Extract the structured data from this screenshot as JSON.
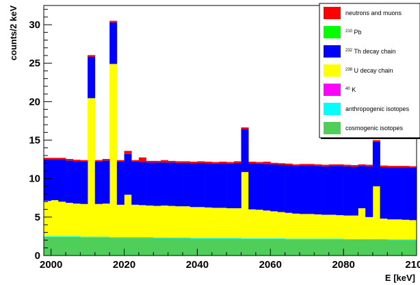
{
  "chart_data": {
    "type": "bar",
    "stacked": true,
    "histogram": true,
    "xlabel": "E [keV]",
    "ylabel": "counts/2 keV",
    "xlim": [
      1998,
      2100
    ],
    "ylim": [
      0,
      32.5
    ],
    "bin_width": 2,
    "x_ticks": [
      2000,
      2020,
      2040,
      2060,
      2080,
      2100
    ],
    "x_tick_labels": [
      "2000",
      "2020",
      "2040",
      "2060",
      "2080",
      "2100"
    ],
    "y_ticks": [
      0,
      5,
      10,
      15,
      20,
      25,
      30
    ],
    "y_tick_labels": [
      "0",
      "5",
      "10",
      "15",
      "20",
      "25",
      "30"
    ],
    "legend_position": "top-right",
    "legend": [
      {
        "key": "neutrons",
        "pre": "",
        "sup": "",
        "post": "neutrons and muons",
        "color": "#ff0000"
      },
      {
        "key": "pb210",
        "pre": "",
        "sup": "210",
        "post": " Pb",
        "color": "#00ff00"
      },
      {
        "key": "th232",
        "pre": "",
        "sup": "232",
        "post": " Th decay chain",
        "color": "#0000ff"
      },
      {
        "key": "u238",
        "pre": "",
        "sup": "238",
        "post": " U decay chain",
        "color": "#ffff00"
      },
      {
        "key": "k40",
        "pre": "",
        "sup": "40",
        "post": " K",
        "color": "#ff00ff"
      },
      {
        "key": "anthro",
        "pre": "",
        "sup": "",
        "post": "anthropogenic isotopes",
        "color": "#00ffff"
      },
      {
        "key": "cosmo",
        "pre": "",
        "sup": "",
        "post": "cosmogenic isotopes",
        "color": "#4fce5a"
      }
    ],
    "bins": [
      1998,
      2000,
      2002,
      2004,
      2006,
      2008,
      2010,
      2012,
      2014,
      2016,
      2018,
      2020,
      2022,
      2024,
      2026,
      2028,
      2030,
      2032,
      2034,
      2036,
      2038,
      2040,
      2042,
      2044,
      2046,
      2048,
      2050,
      2052,
      2054,
      2056,
      2058,
      2060,
      2062,
      2064,
      2066,
      2068,
      2070,
      2072,
      2074,
      2076,
      2078,
      2080,
      2082,
      2084,
      2086,
      2088,
      2090,
      2092,
      2094,
      2096,
      2098
    ],
    "series": [
      {
        "key": "cosmo",
        "values": [
          2.4,
          2.4,
          2.4,
          2.4,
          2.4,
          2.35,
          2.35,
          2.35,
          2.35,
          2.3,
          2.3,
          2.3,
          2.3,
          2.3,
          2.3,
          2.25,
          2.25,
          2.25,
          2.25,
          2.25,
          2.2,
          2.2,
          2.2,
          2.2,
          2.2,
          2.2,
          2.2,
          2.15,
          2.15,
          2.15,
          2.15,
          2.15,
          2.15,
          2.1,
          2.1,
          2.1,
          2.1,
          2.1,
          2.1,
          2.1,
          2.1,
          2.05,
          2.05,
          2.05,
          2.05,
          2.05,
          2.05,
          2.0,
          2.0,
          2.0,
          2.0
        ]
      },
      {
        "key": "anthro",
        "values": [
          0.1,
          0.1,
          0.1,
          0.1,
          0.1,
          0.1,
          0.1,
          0.1,
          0.1,
          0.1,
          0.1,
          0.1,
          0.1,
          0.1,
          0.1,
          0.1,
          0.1,
          0.1,
          0.1,
          0.1,
          0.1,
          0.1,
          0.1,
          0.1,
          0.1,
          0.1,
          0.1,
          0.1,
          0.1,
          0.1,
          0.1,
          0.1,
          0.1,
          0.1,
          0.1,
          0.1,
          0.1,
          0.1,
          0.1,
          0.1,
          0.1,
          0.1,
          0.1,
          0.1,
          0.1,
          0.1,
          0.1,
          0.1,
          0.1,
          0.1,
          0.1
        ]
      },
      {
        "key": "k40",
        "values": [
          0,
          0,
          0,
          0,
          0,
          0,
          0,
          0,
          0,
          0,
          0,
          0,
          0,
          0,
          0,
          0,
          0,
          0,
          0,
          0,
          0,
          0,
          0,
          0,
          0,
          0,
          0,
          0,
          0,
          0,
          0,
          0,
          0,
          0,
          0,
          0,
          0,
          0,
          0,
          0,
          0,
          0,
          0,
          0,
          0,
          0,
          0,
          0,
          0,
          0,
          0
        ]
      },
      {
        "key": "u238",
        "values": [
          4.6,
          4.7,
          4.5,
          4.35,
          4.25,
          4.25,
          18.0,
          4.25,
          4.3,
          22.5,
          4.2,
          5.5,
          4.2,
          4.15,
          4.1,
          4.1,
          4.15,
          4.1,
          4.05,
          4.05,
          4.0,
          4.0,
          3.95,
          3.9,
          3.9,
          3.85,
          3.85,
          8.6,
          3.75,
          3.7,
          3.6,
          3.5,
          3.4,
          3.35,
          3.25,
          3.2,
          3.2,
          3.15,
          3.1,
          3.1,
          3.05,
          3.05,
          3.05,
          4.0,
          2.85,
          6.85,
          2.65,
          2.6,
          2.6,
          2.55,
          2.5
        ]
      },
      {
        "key": "th232",
        "values": [
          5.4,
          5.3,
          5.5,
          5.5,
          5.5,
          5.5,
          5.4,
          5.5,
          5.6,
          5.4,
          5.6,
          5.3,
          5.6,
          5.6,
          5.6,
          5.65,
          5.6,
          5.65,
          5.65,
          5.65,
          5.7,
          5.75,
          5.75,
          5.75,
          5.8,
          5.8,
          5.9,
          5.6,
          6.0,
          6.0,
          6.05,
          6.1,
          6.15,
          6.2,
          6.2,
          6.3,
          6.3,
          6.3,
          6.3,
          6.35,
          6.4,
          6.4,
          6.35,
          5.5,
          6.6,
          5.8,
          6.7,
          6.75,
          6.75,
          6.8,
          6.8
        ]
      },
      {
        "key": "pb210",
        "values": [
          0,
          0,
          0,
          0,
          0,
          0,
          0,
          0,
          0,
          0,
          0,
          0,
          0,
          0,
          0,
          0,
          0,
          0,
          0,
          0,
          0,
          0,
          0,
          0,
          0,
          0,
          0,
          0,
          0,
          0,
          0,
          0,
          0,
          0,
          0,
          0,
          0,
          0,
          0,
          0,
          0,
          0,
          0,
          0,
          0,
          0,
          0,
          0,
          0,
          0,
          0
        ]
      },
      {
        "key": "neutrons",
        "values": [
          0.2,
          0.2,
          0.2,
          0.2,
          0.2,
          0.2,
          0.2,
          0.2,
          0.2,
          0.2,
          0.2,
          0.4,
          0.2,
          0.6,
          0.2,
          0.2,
          0.3,
          0.2,
          0.2,
          0.2,
          0.2,
          0.2,
          0.2,
          0.2,
          0.2,
          0.2,
          0.2,
          0.2,
          0.2,
          0.2,
          0.3,
          0.2,
          0.2,
          0.2,
          0.2,
          0.2,
          0.2,
          0.2,
          0.2,
          0.2,
          0.2,
          0.2,
          0.2,
          0.2,
          0.2,
          0.2,
          0.2,
          0.2,
          0.2,
          0.2,
          0.2
        ]
      }
    ]
  }
}
